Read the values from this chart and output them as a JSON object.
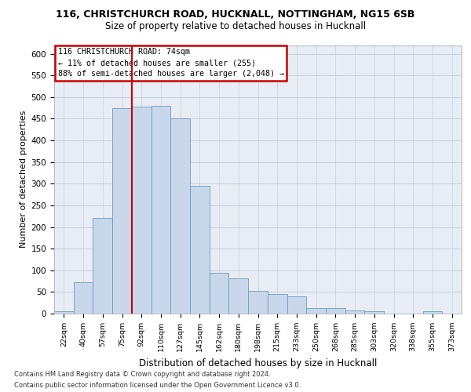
{
  "title_line1": "116, CHRISTCHURCH ROAD, HUCKNALL, NOTTINGHAM, NG15 6SB",
  "title_line2": "Size of property relative to detached houses in Hucknall",
  "xlabel": "Distribution of detached houses by size in Hucknall",
  "ylabel": "Number of detached properties",
  "categories": [
    "22sqm",
    "40sqm",
    "57sqm",
    "75sqm",
    "92sqm",
    "110sqm",
    "127sqm",
    "145sqm",
    "162sqm",
    "180sqm",
    "198sqm",
    "215sqm",
    "233sqm",
    "250sqm",
    "268sqm",
    "285sqm",
    "303sqm",
    "320sqm",
    "338sqm",
    "355sqm",
    "373sqm"
  ],
  "values": [
    5,
    72,
    220,
    475,
    477,
    479,
    450,
    295,
    95,
    81,
    53,
    46,
    40,
    12,
    12,
    8,
    5,
    0,
    0,
    5,
    0
  ],
  "bar_color": "#c8d8ea",
  "bar_edge_color": "#7099bb",
  "grid_color": "#c8d0dd",
  "background_color": "#e8edf5",
  "vline_x": 3.5,
  "vline_color": "#cc0000",
  "annotation_text_line1": "116 CHRISTCHURCH ROAD: 74sqm",
  "annotation_text_line2": "← 11% of detached houses are smaller (255)",
  "annotation_text_line3": "88% of semi-detached houses are larger (2,048) →",
  "annotation_box_color": "#cc0000",
  "footer_line1": "Contains HM Land Registry data © Crown copyright and database right 2024.",
  "footer_line2": "Contains public sector information licensed under the Open Government Licence v3.0.",
  "ylim": [
    0,
    620
  ],
  "yticks": [
    0,
    50,
    100,
    150,
    200,
    250,
    300,
    350,
    400,
    450,
    500,
    550,
    600
  ]
}
